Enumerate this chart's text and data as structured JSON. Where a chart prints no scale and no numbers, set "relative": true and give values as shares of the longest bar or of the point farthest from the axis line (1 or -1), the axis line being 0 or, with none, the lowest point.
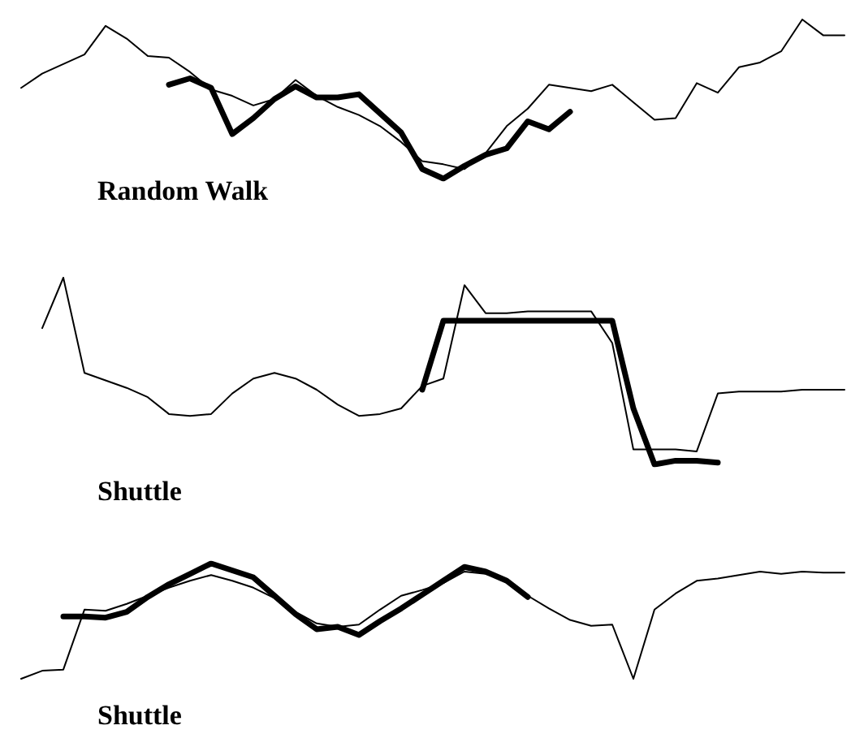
{
  "chart_data": [
    {
      "type": "line",
      "title": "Random Walk",
      "relative": true,
      "categories": [
        null,
        null,
        null,
        null,
        null,
        null,
        null,
        null,
        null,
        null,
        null,
        null,
        null,
        null,
        null,
        null,
        null,
        null,
        null,
        null,
        null,
        null,
        null,
        null,
        null,
        null,
        null,
        null,
        null,
        null,
        null,
        null,
        null,
        null,
        null,
        null,
        null,
        null,
        null,
        null
      ],
      "series": [
        {
          "color": "#000000",
          "values": [
            0.57,
            0.66,
            0.72,
            0.78,
            0.96,
            0.88,
            0.77,
            0.76,
            0.67,
            0.56,
            0.52,
            0.46,
            0.5,
            0.62,
            0.52,
            0.45,
            0.4,
            0.33,
            0.23,
            0.11,
            0.09,
            0.06,
            0.16,
            0.33,
            0.44,
            0.59,
            0.57,
            0.55,
            0.59,
            0.48,
            0.37,
            0.38,
            0.6,
            0.54,
            0.7,
            0.73,
            0.8,
            1.0,
            0.9,
            0.9
          ]
        },
        {
          "color": "#000000",
          "values": [
            null,
            null,
            null,
            null,
            null,
            null,
            null,
            0.59,
            0.63,
            0.57,
            0.28,
            0.38,
            0.5,
            0.58,
            0.51,
            0.51,
            0.53,
            0.41,
            0.29,
            0.06,
            0.0,
            0.08,
            0.15,
            0.19,
            0.36,
            0.31,
            0.42,
            null,
            null,
            null,
            null,
            null,
            null,
            null,
            null,
            null,
            null,
            null,
            null,
            null
          ]
        }
      ]
    },
    {
      "type": "line",
      "title": "Shuttle",
      "relative": true,
      "categories": [
        null,
        null,
        null,
        null,
        null,
        null,
        null,
        null,
        null,
        null,
        null,
        null,
        null,
        null,
        null,
        null,
        null,
        null,
        null,
        null,
        null,
        null,
        null,
        null,
        null,
        null,
        null,
        null,
        null,
        null,
        null,
        null,
        null,
        null,
        null,
        null,
        null,
        null,
        null,
        null
      ],
      "series": [
        {
          "color": "#000000",
          "values": [
            null,
            0.73,
            1.0,
            0.49,
            0.45,
            0.41,
            0.36,
            0.27,
            0.26,
            0.27,
            0.38,
            0.46,
            0.49,
            0.46,
            0.4,
            0.32,
            0.26,
            0.27,
            0.3,
            0.42,
            0.46,
            0.96,
            0.81,
            0.81,
            0.82,
            0.82,
            0.82,
            0.82,
            0.65,
            0.08,
            0.08,
            0.08,
            0.07,
            0.38,
            0.39,
            0.39,
            0.39,
            0.4,
            0.4,
            0.4
          ]
        },
        {
          "color": "#000000",
          "values": [
            null,
            null,
            null,
            null,
            null,
            null,
            null,
            null,
            null,
            null,
            null,
            null,
            null,
            null,
            null,
            null,
            null,
            null,
            null,
            0.4,
            0.77,
            0.77,
            0.77,
            0.77,
            0.77,
            0.77,
            0.77,
            0.77,
            0.77,
            0.3,
            0.0,
            0.02,
            0.02,
            0.01,
            null,
            null,
            null,
            null,
            null,
            null
          ]
        }
      ]
    },
    {
      "type": "line",
      "title": "Shuttle",
      "relative": true,
      "categories": [
        null,
        null,
        null,
        null,
        null,
        null,
        null,
        null,
        null,
        null,
        null,
        null,
        null,
        null,
        null,
        null,
        null,
        null,
        null,
        null,
        null,
        null,
        null,
        null,
        null,
        null,
        null,
        null,
        null,
        null,
        null,
        null,
        null,
        null,
        null,
        null,
        null,
        null,
        null,
        null
      ],
      "series": [
        {
          "color": "#000000",
          "values": [
            0.0,
            0.07,
            0.08,
            0.6,
            0.59,
            0.65,
            0.72,
            0.79,
            0.85,
            0.9,
            0.85,
            0.79,
            0.7,
            0.58,
            0.48,
            0.45,
            0.47,
            0.6,
            0.72,
            0.77,
            0.83,
            0.93,
            0.91,
            0.85,
            0.72,
            0.61,
            0.51,
            0.46,
            0.47,
            0.0,
            0.6,
            0.74,
            0.85,
            0.87,
            0.9,
            0.93,
            0.91,
            0.93,
            0.92,
            0.92
          ]
        },
        {
          "color": "#000000",
          "values": [
            null,
            null,
            0.54,
            0.54,
            0.53,
            0.58,
            0.71,
            0.82,
            0.91,
            1.0,
            0.94,
            0.88,
            0.72,
            0.56,
            0.43,
            0.45,
            0.38,
            0.5,
            0.61,
            0.73,
            0.85,
            0.97,
            0.93,
            0.85,
            0.71,
            null,
            null,
            null,
            null,
            null,
            null,
            null,
            null,
            null,
            null,
            null,
            null,
            null,
            null,
            null
          ]
        }
      ]
    }
  ]
}
